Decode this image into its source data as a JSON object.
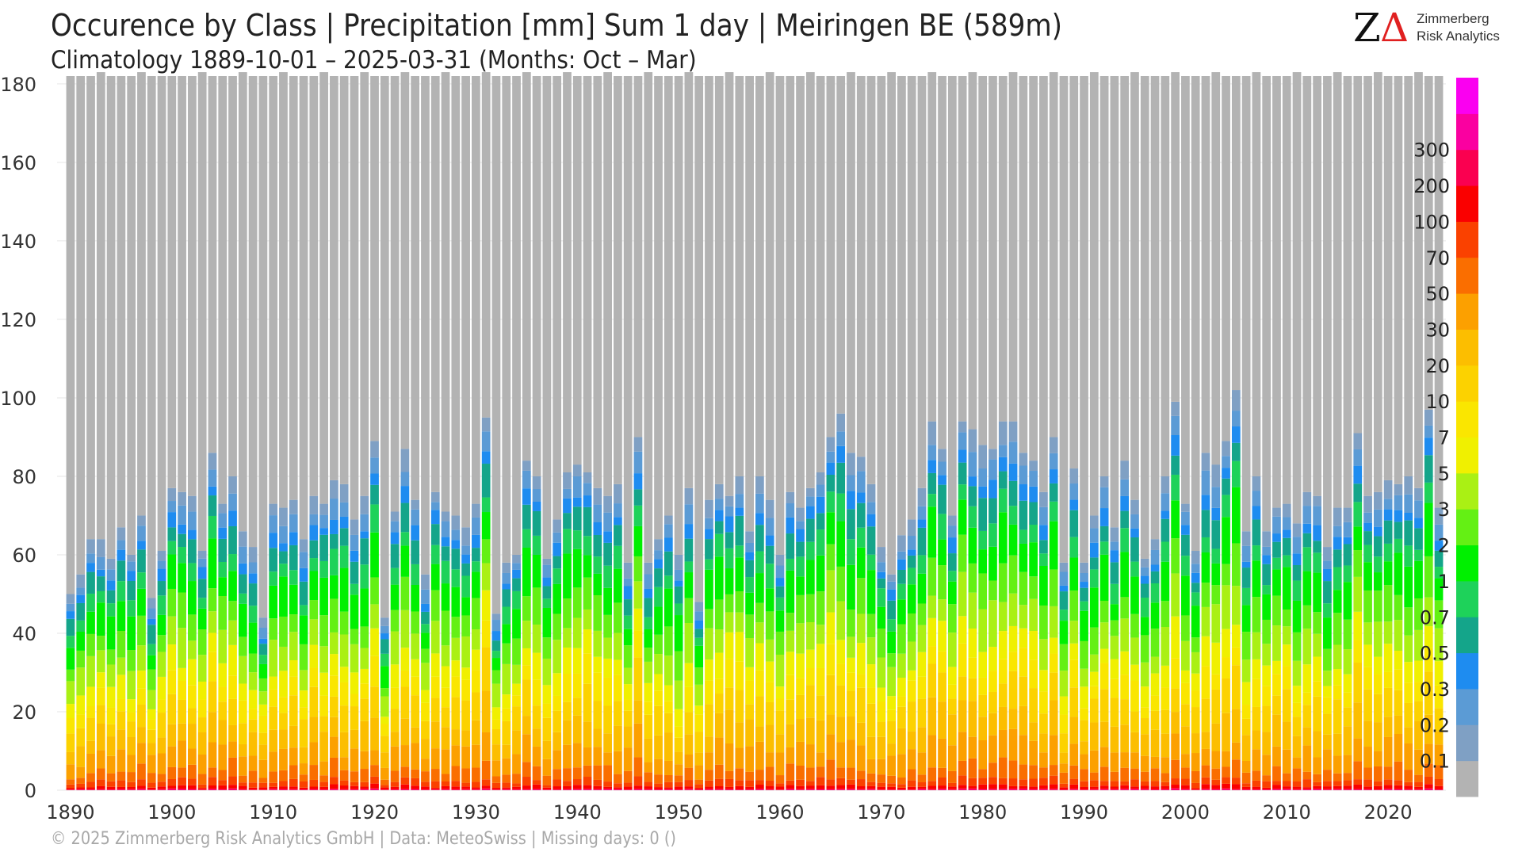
{
  "header": {
    "title": "Occurence by Class | Precipitation [mm] Sum 1 day | Meiringen  BE (589m)",
    "subtitle": "Climatology 1889-10-01 – 2025-03-31 (Months: Oct – Mar)"
  },
  "logo": {
    "z": "Z",
    "delta": "Δ",
    "line1": "Zimmerberg",
    "line2": "Risk Analytics"
  },
  "footer": "©  2025 Zimmerberg Risk Analytics GmbH | Data: MeteoSwiss | Missing days: 0 ()",
  "chart_data": {
    "type": "bar",
    "stacked": true,
    "x_start_year": 1890,
    "x_end_year": 2025,
    "xticks": [
      1890,
      1900,
      1910,
      1920,
      1930,
      1940,
      1950,
      1960,
      1970,
      1980,
      1990,
      2000,
      2010,
      2020
    ],
    "xlim": [
      1889.3,
      2025.7
    ],
    "ylim": [
      0,
      182
    ],
    "yticks": [
      0,
      20,
      40,
      60,
      80,
      100,
      120,
      140,
      160,
      180
    ],
    "grid": true,
    "legend_position": "right (colorbar)",
    "classes": [
      {
        "label": "",
        "color": "#b3b3b3"
      },
      {
        "label": "0.1",
        "color": "#7fa0c4"
      },
      {
        "label": "0.2",
        "color": "#5b9bd5"
      },
      {
        "label": "0.3",
        "color": "#1e8cf0"
      },
      {
        "label": "0.5",
        "color": "#14a58a"
      },
      {
        "label": "0.7",
        "color": "#1ed25a"
      },
      {
        "label": "1",
        "color": "#00f000"
      },
      {
        "label": "2",
        "color": "#64f014"
      },
      {
        "label": "3",
        "color": "#aaf014"
      },
      {
        "label": "5",
        "color": "#f0f000"
      },
      {
        "label": "7",
        "color": "#fae600"
      },
      {
        "label": "10",
        "color": "#fcd200"
      },
      {
        "label": "20",
        "color": "#fcbe00"
      },
      {
        "label": "30",
        "color": "#fca000"
      },
      {
        "label": "50",
        "color": "#fa6e00"
      },
      {
        "label": "70",
        "color": "#fa4100"
      },
      {
        "label": "100",
        "color": "#fa0000"
      },
      {
        "label": "200",
        "color": "#fa0050"
      },
      {
        "label": "300",
        "color": "#fa00a0"
      },
      {
        "label": "",
        "color": "#fa00f0"
      }
    ],
    "series_order_note": "values arrays are days per year for each class from index 0 (lightest, gray) upward; bars also include gray remainder to the season length",
    "wet_totals": [
      50,
      55,
      64,
      64,
      59,
      67,
      60,
      70,
      49,
      61,
      77,
      76,
      75,
      61,
      86,
      73,
      80,
      66,
      62,
      44,
      73,
      72,
      74,
      64,
      75,
      73,
      79,
      78,
      69,
      75,
      89,
      44,
      71,
      87,
      74,
      55,
      76,
      71,
      70,
      67,
      73,
      95,
      45,
      58,
      60,
      84,
      80,
      59,
      69,
      81,
      83,
      81,
      77,
      75,
      78,
      58,
      90,
      58,
      64,
      70,
      60,
      77,
      48,
      74,
      78,
      75,
      80,
      66,
      80,
      74,
      60,
      76,
      72,
      77,
      81,
      90,
      96,
      86,
      85,
      78,
      62,
      55,
      65,
      69,
      77,
      94,
      87,
      70,
      94,
      92,
      88,
      87,
      94,
      94,
      86,
      84,
      76,
      90,
      58,
      82,
      58,
      70,
      80,
      67,
      84,
      74,
      59,
      64,
      80,
      99,
      73,
      61,
      86,
      83,
      89,
      102,
      66,
      80,
      66,
      72,
      73,
      68,
      76,
      75,
      62,
      72,
      72,
      91,
      75,
      76,
      79,
      78,
      80,
      77,
      97,
      72
    ],
    "season_lengths": [
      182,
      182,
      182,
      183,
      182,
      182,
      182,
      183,
      182,
      182,
      182,
      182,
      182,
      183,
      182,
      182,
      182,
      183,
      182,
      182,
      182,
      183,
      182,
      182,
      182,
      183,
      182,
      182,
      182,
      183,
      182,
      182,
      182,
      183,
      182,
      182,
      182,
      183,
      182,
      182,
      182,
      183,
      182,
      182,
      182,
      183,
      182,
      182,
      182,
      183,
      182,
      182,
      182,
      183,
      182,
      182,
      182,
      183,
      182,
      182,
      182,
      183,
      182,
      182,
      182,
      183,
      182,
      182,
      182,
      183,
      182,
      182,
      182,
      183,
      182,
      182,
      182,
      183,
      182,
      182,
      182,
      183,
      182,
      182,
      182,
      183,
      182,
      182,
      182,
      183,
      182,
      182,
      182,
      183,
      182,
      182,
      182,
      183,
      182,
      182,
      182,
      183,
      182,
      182,
      182,
      183,
      182,
      182,
      182,
      183,
      182,
      182,
      182,
      183,
      182,
      182,
      182,
      183,
      182,
      182,
      182,
      183,
      182,
      182,
      182,
      183,
      182,
      182,
      182,
      183,
      182,
      182,
      182,
      183,
      182,
      182
    ]
  }
}
